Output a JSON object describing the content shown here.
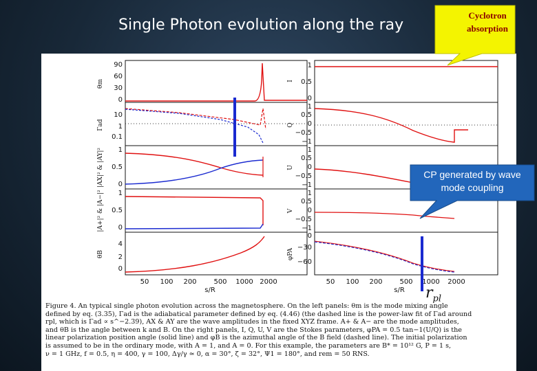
{
  "slide": {
    "title": "Single Photon evolution along the ray"
  },
  "callouts": {
    "cyclotron": [
      "Cyclotron",
      "absorption"
    ],
    "cp": [
      "CP generated by wave",
      "mode coupling"
    ],
    "rpl_label": "r",
    "rpl_sub": "pl"
  },
  "figure": {
    "left_panels": [
      {
        "ylabel": "θm",
        "ticks": [
          "90",
          "60",
          "30",
          "0"
        ]
      },
      {
        "ylabel": "Γad",
        "ticks": [
          "10",
          "1",
          "0.1"
        ]
      },
      {
        "ylabel": "|AX|² & |AY|²",
        "ticks": [
          "1",
          "0.5",
          "0"
        ]
      },
      {
        "ylabel": "|A+|² & |A−|²",
        "ticks": [
          "1",
          "0.5",
          "0"
        ]
      },
      {
        "ylabel": "θB",
        "ticks": [
          "4",
          "2",
          "0"
        ]
      }
    ],
    "right_panels": [
      {
        "ylabel": "I",
        "ticks": [
          "1",
          "0.5",
          "0"
        ]
      },
      {
        "ylabel": "Q",
        "ticks": [
          "1",
          "0.5",
          "0",
          "−0.5",
          "−1"
        ]
      },
      {
        "ylabel": "U",
        "ticks": [
          "1",
          "0.5",
          "0",
          "−0.5",
          "−1"
        ]
      },
      {
        "ylabel": "V",
        "ticks": [
          "1",
          "0.5",
          "0",
          "−0.5",
          "−1"
        ]
      },
      {
        "ylabel": "φPA",
        "ticks": [
          "0",
          "−30",
          "−60"
        ]
      }
    ],
    "x_ticks": [
      "50",
      "100",
      "200",
      "500",
      "1000",
      "2000"
    ],
    "x_label": "s/R"
  },
  "caption": {
    "lines": [
      "Figure 4. An typical single photon evolution across the magnetosphere. On the left panels: θm is the mode mixing angle",
      "defined by eq. (3.35), Γad is the adiabatical parameter defined by eq. (4.46) (the dashed line is the power-law fit of Γad around",
      "rpl, which is Γad ∝ s^−2.39), AX & AY are the wave amplitudes in the fixed XYZ frame. A+ & A− are the mode amplitudes,",
      "and θB is the angle between k and B. On the right panels, I, Q, U, V are the Stokes parameters, φPA = 0.5 tan−1(U/Q) is the",
      "linear polarization position angle (solid line) and φB is the azimuthal angle of the B field (dashed line). The initial polarization",
      "is assumed to be in the ordinary mode, with A = 1, and A = 0. For this example, the parameters are B* = 10¹² G, P = 1 s,",
      "ν = 1 GHz, f = 0.5, η = 400, γ = 100, Δγ/γ ≃ 0, α = 30°, ζ = 32°, Ψ1 = 180°, and rem = 50 RNS."
    ]
  },
  "colors": {
    "red": "#e01010",
    "blue": "#1a2ad0",
    "callout_yellow": "#f4f400",
    "callout_blue": "#2266bb"
  }
}
